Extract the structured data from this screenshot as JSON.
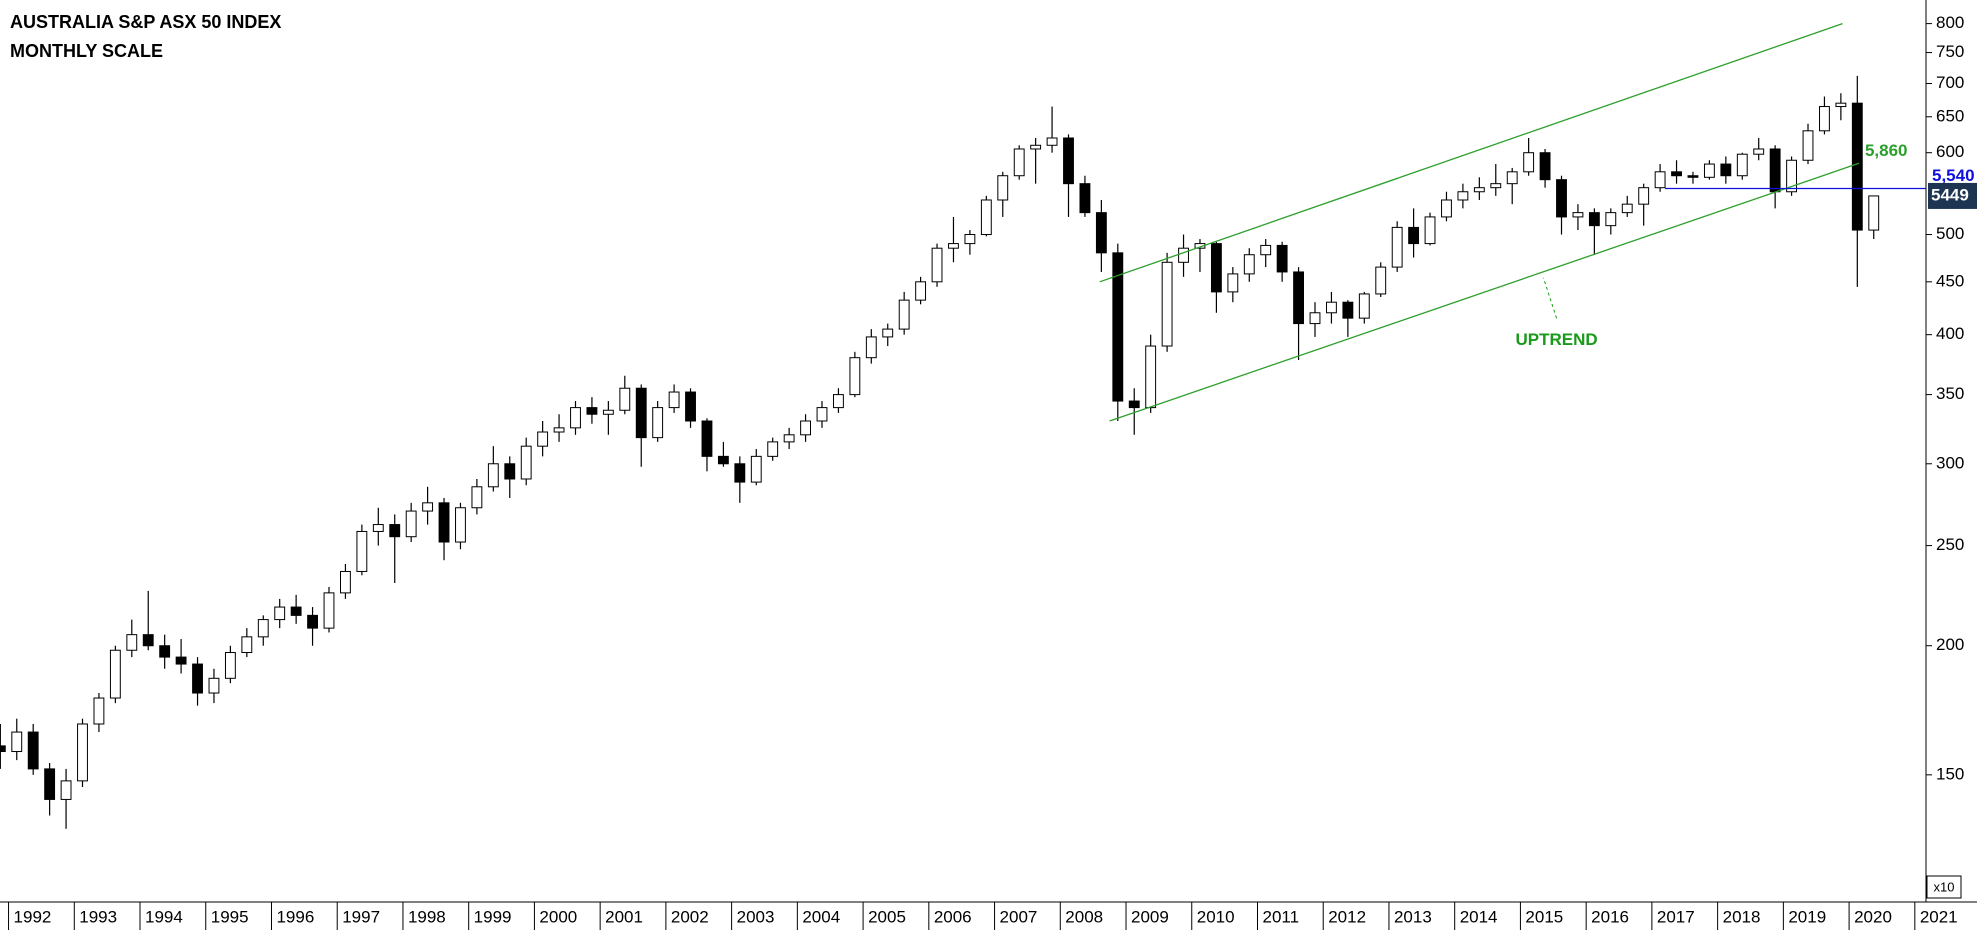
{
  "chart_data": {
    "type": "candlestick",
    "title": "AUSTRALIA S&P ASX 50 INDEX",
    "subtitle": "MONTHLY SCALE",
    "axis_unit": "x10",
    "log_scale": true,
    "xlim": [
      1991.87,
      2021.17
    ],
    "xticks": [
      1992,
      1993,
      1994,
      1995,
      1996,
      1997,
      1998,
      1999,
      2000,
      2001,
      2002,
      2003,
      2004,
      2005,
      2006,
      2007,
      2008,
      2009,
      2010,
      2011,
      2012,
      2013,
      2014,
      2015,
      2016,
      2017,
      2018,
      2019,
      2020,
      2021
    ],
    "ylim": [
      114,
      832
    ],
    "yticks": [
      150,
      200,
      250,
      300,
      350,
      400,
      450,
      500,
      600,
      650,
      700,
      750,
      800
    ],
    "up_color": "#ffffff",
    "down_color": "#000000",
    "candles": {
      "x": [
        1991.875,
        1992.125,
        1992.375,
        1992.625,
        1992.875,
        1993.125,
        1993.375,
        1993.625,
        1993.875,
        1994.125,
        1994.375,
        1994.625,
        1994.875,
        1995.125,
        1995.375,
        1995.625,
        1995.875,
        1996.125,
        1996.375,
        1996.625,
        1996.875,
        1997.125,
        1997.375,
        1997.625,
        1997.875,
        1998.125,
        1998.375,
        1998.625,
        1998.875,
        1999.125,
        1999.375,
        1999.625,
        1999.875,
        2000.125,
        2000.375,
        2000.625,
        2000.875,
        2001.125,
        2001.375,
        2001.625,
        2001.875,
        2002.125,
        2002.375,
        2002.625,
        2002.875,
        2003.125,
        2003.375,
        2003.625,
        2003.875,
        2004.125,
        2004.375,
        2004.625,
        2004.875,
        2005.125,
        2005.375,
        2005.625,
        2005.875,
        2006.125,
        2006.375,
        2006.625,
        2006.875,
        2007.125,
        2007.375,
        2007.625,
        2007.875,
        2008.125,
        2008.375,
        2008.625,
        2008.875,
        2009.125,
        2009.375,
        2009.625,
        2009.875,
        2010.125,
        2010.375,
        2010.625,
        2010.875,
        2011.125,
        2011.375,
        2011.625,
        2011.875,
        2012.125,
        2012.375,
        2012.625,
        2012.875,
        2013.125,
        2013.375,
        2013.625,
        2013.875,
        2014.125,
        2014.375,
        2014.625,
        2014.875,
        2015.125,
        2015.375,
        2015.625,
        2015.875,
        2016.125,
        2016.375,
        2016.625,
        2016.875,
        2017.125,
        2017.375,
        2017.625,
        2017.875,
        2018.125,
        2018.375,
        2018.625,
        2018.875,
        2019.125,
        2019.375,
        2019.625,
        2019.875,
        2020.125,
        2020.375
      ],
      "open": [
        160,
        158,
        165,
        152,
        142,
        148,
        168,
        178,
        198,
        205,
        200,
        195,
        192,
        180,
        186,
        197,
        204,
        212,
        218,
        214,
        208,
        225,
        236,
        258,
        262,
        255,
        270,
        275,
        252,
        272,
        285,
        300,
        290,
        312,
        322,
        325,
        340,
        335,
        338,
        355,
        318,
        340,
        352,
        330,
        305,
        300,
        288,
        305,
        315,
        320,
        330,
        340,
        350,
        380,
        398,
        405,
        432,
        450,
        485,
        490,
        500,
        540,
        570,
        605,
        610,
        620,
        560,
        525,
        480,
        345,
        340,
        390,
        470,
        485,
        490,
        440,
        458,
        478,
        488,
        460,
        410,
        420,
        430,
        415,
        438,
        465,
        508,
        490,
        520,
        540,
        550,
        555,
        560,
        575,
        600,
        565,
        520,
        525,
        510,
        525,
        535,
        555,
        575,
        570,
        568,
        585,
        570,
        598,
        605,
        550,
        590,
        630,
        665,
        670,
        505
      ],
      "high": [
        168,
        170,
        168,
        154,
        152,
        170,
        180,
        200,
        212,
        226,
        205,
        203,
        195,
        190,
        200,
        208,
        214,
        222,
        224,
        218,
        228,
        240,
        262,
        272,
        268,
        275,
        285,
        278,
        275,
        290,
        312,
        305,
        318,
        330,
        335,
        345,
        348,
        345,
        365,
        358,
        345,
        358,
        355,
        332,
        315,
        305,
        310,
        318,
        325,
        335,
        345,
        355,
        385,
        405,
        410,
        440,
        455,
        490,
        520,
        505,
        545,
        575,
        610,
        620,
        665,
        625,
        570,
        540,
        490,
        355,
        400,
        480,
        500,
        495,
        492,
        465,
        485,
        495,
        492,
        465,
        430,
        440,
        432,
        440,
        470,
        515,
        530,
        525,
        550,
        560,
        568,
        585,
        580,
        620,
        605,
        570,
        535,
        530,
        530,
        545,
        560,
        585,
        590,
        575,
        590,
        595,
        600,
        620,
        610,
        595,
        640,
        680,
        685,
        712,
        545
      ],
      "low": [
        152,
        155,
        150,
        137,
        133,
        146,
        165,
        176,
        195,
        198,
        190,
        188,
        175,
        176,
        184,
        195,
        200,
        208,
        210,
        200,
        206,
        222,
        234,
        250,
        230,
        252,
        262,
        242,
        248,
        268,
        282,
        278,
        286,
        305,
        315,
        320,
        328,
        320,
        335,
        298,
        315,
        336,
        325,
        295,
        298,
        275,
        286,
        302,
        310,
        315,
        325,
        336,
        348,
        375,
        390,
        400,
        428,
        445,
        470,
        478,
        498,
        520,
        565,
        560,
        600,
        520,
        520,
        460,
        330,
        320,
        336,
        385,
        455,
        460,
        420,
        430,
        450,
        465,
        450,
        378,
        398,
        410,
        398,
        410,
        435,
        460,
        475,
        488,
        515,
        530,
        540,
        545,
        535,
        570,
        555,
        500,
        505,
        478,
        500,
        520,
        510,
        550,
        560,
        560,
        565,
        560,
        565,
        590,
        530,
        545,
        585,
        625,
        645,
        445,
        495
      ],
      "close": [
        158,
        165,
        152,
        142,
        148,
        168,
        178,
        198,
        205,
        200,
        195,
        192,
        180,
        186,
        197,
        204,
        212,
        218,
        214,
        208,
        225,
        236,
        258,
        262,
        255,
        270,
        275,
        252,
        272,
        285,
        300,
        290,
        312,
        322,
        325,
        340,
        335,
        338,
        355,
        318,
        340,
        352,
        330,
        305,
        300,
        288,
        305,
        315,
        320,
        330,
        340,
        350,
        380,
        398,
        405,
        432,
        450,
        485,
        490,
        500,
        540,
        570,
        605,
        610,
        620,
        560,
        525,
        480,
        345,
        340,
        390,
        470,
        485,
        490,
        440,
        458,
        478,
        488,
        460,
        410,
        420,
        430,
        415,
        438,
        465,
        508,
        490,
        520,
        540,
        550,
        555,
        560,
        575,
        600,
        565,
        520,
        525,
        510,
        525,
        535,
        555,
        575,
        570,
        568,
        585,
        570,
        598,
        605,
        550,
        590,
        630,
        665,
        670,
        505,
        544.9
      ]
    },
    "last_price": {
      "value": 544.9,
      "label": "5449"
    },
    "channel_upper": {
      "x": [
        2008.6,
        2019.9
      ],
      "y": [
        450,
        800
      ],
      "color": "#2ca02c"
    },
    "channel_lower": {
      "x": [
        2008.75,
        2020.15
      ],
      "y": [
        330,
        586
      ],
      "color": "#2ca02c",
      "end_label": "5,860"
    },
    "support": {
      "x": [
        2017.2,
        2021.17
      ],
      "y": [
        554,
        554
      ],
      "color": "#1010e0",
      "end_label": "5,540"
    },
    "annotation": {
      "text": "UPTREND",
      "x": 2015.55,
      "y": 395,
      "color": "#1a9a1a"
    }
  }
}
